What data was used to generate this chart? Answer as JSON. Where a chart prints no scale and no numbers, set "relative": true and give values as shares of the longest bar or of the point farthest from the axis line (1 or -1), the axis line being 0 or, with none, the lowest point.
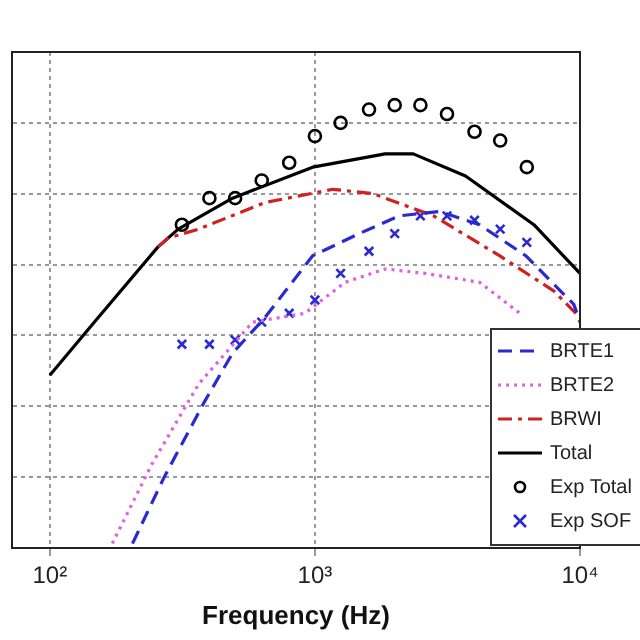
{
  "chart_data": {
    "type": "line",
    "relative": true,
    "xlabel": "Frequency (Hz)",
    "log": "x",
    "xlim": [
      72,
      10000
    ],
    "xticks": [
      {
        "value": 100,
        "label": "10²"
      },
      {
        "value": 1000,
        "label": "10³"
      },
      {
        "value": 10000,
        "label": "10⁴"
      }
    ],
    "grid": true,
    "legend": "bottom right",
    "series": [
      {
        "name": "BRTE1",
        "color": "#2a2ad0",
        "line_style": "dashed",
        "marker": "none",
        "x": [
          205,
          270,
          383,
          489,
          647,
          981,
          1470,
          2080,
          2950,
          4180,
          6240,
          9480,
          10000
        ],
        "values": [
          0.01,
          0.16,
          0.33,
          0.44,
          0.52,
          0.66,
          0.71,
          0.75,
          0.76,
          0.73,
          0.66,
          0.55,
          0.51
        ]
      },
      {
        "name": "BRTE2",
        "color": "#e060e0",
        "line_style": "dotted",
        "marker": "none",
        "x": [
          172,
          243,
          364,
          582,
          916,
          1300,
          1840,
          2610,
          4180,
          5930
        ],
        "values": [
          0.01,
          0.19,
          0.37,
          0.51,
          0.53,
          0.6,
          0.63,
          0.62,
          0.6,
          0.53
        ]
      },
      {
        "name": "BRWI",
        "color": "#d02020",
        "line_style": "dashdot",
        "marker": "none",
        "x": [
          256,
          280,
          364,
          647,
          1170,
          1660,
          2800,
          4970,
          7980,
          10000
        ],
        "values": [
          0.68,
          0.7,
          0.72,
          0.78,
          0.81,
          0.8,
          0.75,
          0.66,
          0.58,
          0.52
        ]
      },
      {
        "name": "Total",
        "color": "#000000",
        "line_style": "solid",
        "marker": "none",
        "x": [
          100,
          152,
          256,
          305,
          489,
          981,
          1840,
          2350,
          3700,
          6700,
          10000
        ],
        "values": [
          0.39,
          0.52,
          0.68,
          0.72,
          0.79,
          0.86,
          0.89,
          0.89,
          0.84,
          0.73,
          0.62
        ]
      },
      {
        "name": "Exp Total",
        "type": "scatter",
        "color": "#000000",
        "marker": "circle",
        "x": [
          315,
          400,
          500,
          630,
          800,
          1000,
          1250,
          1600,
          2000,
          2500,
          3150,
          4000,
          5000,
          6300
        ],
        "values": [
          0.73,
          0.79,
          0.79,
          0.83,
          0.87,
          0.93,
          0.96,
          0.99,
          1.0,
          1.0,
          0.98,
          0.94,
          0.92,
          0.86
        ]
      },
      {
        "name": "Exp SOF",
        "type": "scatter",
        "color": "#2a2ad0",
        "marker": "cross",
        "x": [
          315,
          400,
          500,
          630,
          800,
          1000,
          1250,
          1600,
          2000,
          2500,
          3150,
          4000,
          5000,
          6300
        ],
        "values": [
          0.46,
          0.46,
          0.47,
          0.51,
          0.53,
          0.56,
          0.62,
          0.67,
          0.71,
          0.75,
          0.75,
          0.74,
          0.72,
          0.69
        ]
      }
    ]
  }
}
